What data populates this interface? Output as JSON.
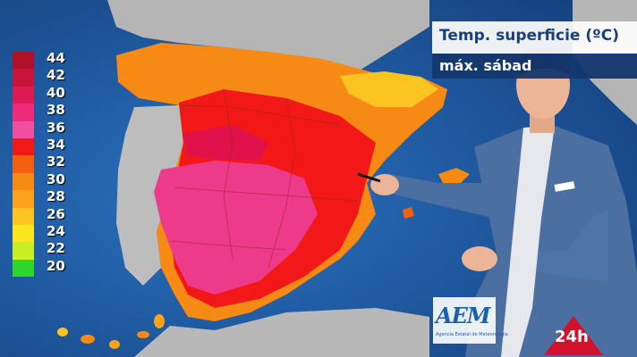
{
  "title": "Temp. superficie (ºC)",
  "subtitle": "máx. sábad",
  "legend": [
    {
      "label": "44",
      "color": "#b0102a"
    },
    {
      "label": "42",
      "color": "#c8133a"
    },
    {
      "label": "40",
      "color": "#de1a55"
    },
    {
      "label": "38",
      "color": "#ee2a7a"
    },
    {
      "label": "36",
      "color": "#f04fa0"
    },
    {
      "label": "34",
      "color": "#f21818"
    },
    {
      "label": "32",
      "color": "#f46010"
    },
    {
      "label": "30",
      "color": "#f78a14"
    },
    {
      "label": "28",
      "color": "#f9a21a"
    },
    {
      "label": "26",
      "color": "#fbc420"
    },
    {
      "label": "24",
      "color": "#fbe51e"
    },
    {
      "label": "22",
      "color": "#c8ef24"
    },
    {
      "label": "20",
      "color": "#2ed62e"
    }
  ],
  "logo_text": "AEM",
  "logo_subtext": "Agencia Estatal de Meteorología",
  "channel_badge": "24h",
  "colors": {
    "sea": "#1e5aa0",
    "land_grey": "#b9b9b9",
    "title_text": "#1b3f7a",
    "subtitle_bg": "#14376e",
    "badge_red": "#d2122a"
  }
}
